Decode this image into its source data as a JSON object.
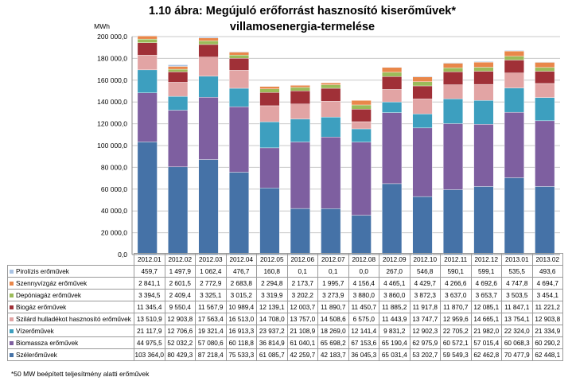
{
  "chart_data": {
    "type": "bar",
    "stacked": true,
    "title": "1.10 ábra: Megújuló erőforrást hasznosító kiserőművek* villamosenergia-termelése",
    "ylabel": "MWh",
    "ylim": [
      0,
      200000
    ],
    "y_ticks": [
      "0,0",
      "20 000,0",
      "40 000,0",
      "60 000,0",
      "80 000,0",
      "100 000,0",
      "120 000,0",
      "140 000,0",
      "160 000,0",
      "180 000,0",
      "200 000,0"
    ],
    "grid": true,
    "categories": [
      "2012.01",
      "2012.02",
      "2012.03",
      "2012.04",
      "2012.05",
      "2012.06",
      "2012.07",
      "2012.08",
      "2012.09",
      "2012.10",
      "2012.11",
      "2012.12",
      "2013.01",
      "2013.02"
    ],
    "series": [
      {
        "name": "Szélerőművek",
        "color": "#4572A7",
        "values": [
          103364.0,
          80429.3,
          87218.4,
          75533.3,
          61085.7,
          42259.7,
          42183.7,
          36045.3,
          65031.4,
          53202.7,
          59549.3,
          62462.8,
          70477.9,
          62448.1
        ],
        "labels": [
          "103 364,0",
          "80 429,3",
          "87 218,4",
          "75 533,3",
          "61 085,7",
          "42 259,7",
          "42 183,7",
          "36 045,3",
          "65 031,4",
          "53 202,7",
          "59 549,3",
          "62 462,8",
          "70 477,9",
          "62 448,1"
        ]
      },
      {
        "name": "Biomassza erőművek",
        "color": "#7E5FA0",
        "values": [
          44975.5,
          52032.2,
          57080.6,
          60118.8,
          36814.9,
          61040.1,
          65698.2,
          67153.6,
          65190.4,
          62975.9,
          60572.1,
          57015.4,
          60068.3,
          60290.2
        ],
        "labels": [
          "44 975,5",
          "52 032,2",
          "57 080,6",
          "60 118,8",
          "36 814,9",
          "61 040,1",
          "65 698,2",
          "67 153,6",
          "65 190,4",
          "62 975,9",
          "60 572,1",
          "57 015,4",
          "60 068,3",
          "60 290,2"
        ]
      },
      {
        "name": "Vízerőművek",
        "color": "#3D9FBF",
        "values": [
          21117.9,
          12706.6,
          19321.4,
          16913.3,
          23937.2,
          21108.9,
          18269.0,
          12141.4,
          9831.2,
          12902.3,
          22705.2,
          21982.0,
          22324.0,
          21334.9
        ],
        "labels": [
          "21 117,9",
          "12 706,6",
          "19 321,4",
          "16 913,3",
          "23 937,2",
          "21 108,9",
          "18 269,0",
          "12 141,4",
          "9 831,2",
          "12 902,3",
          "22 705,2",
          "21 982,0",
          "22 324,0",
          "21 334,9"
        ]
      },
      {
        "name": "Szilárd hulladékot hasznosító erőművek",
        "color": "#E2A4A4",
        "values": [
          13510.9,
          12903.8,
          17563.4,
          16513.0,
          14708.0,
          13757.0,
          14508.6,
          6575.0,
          11443.9,
          13747.7,
          12959.6,
          14665.1,
          13754.1,
          12903.8
        ],
        "labels": [
          "13 510,9",
          "12 903,8",
          "17 563,4",
          "16 513,0",
          "14 708,0",
          "13 757,0",
          "14 508,6",
          "6 575,0",
          "11 443,9",
          "13 747,7",
          "12 959,6",
          "14 665,1",
          "13 754,1",
          "12 903,8"
        ]
      },
      {
        "name": "Biogáz erőművek",
        "color": "#A03037",
        "values": [
          11345.4,
          9550.4,
          11567.9,
          10989.4,
          12139.1,
          12003.7,
          11890.7,
          11450.7,
          11885.2,
          11917.8,
          11870.7,
          12085.1,
          11847.1,
          11221.2
        ],
        "labels": [
          "11 345,4",
          "9 550,4",
          "11 567,9",
          "10 989,4",
          "12 139,1",
          "12 003,7",
          "11 890,7",
          "11 450,7",
          "11 885,2",
          "11 917,8",
          "11 870,7",
          "12 085,1",
          "11 847,1",
          "11 221,2"
        ]
      },
      {
        "name": "Depóniagáz erőművek",
        "color": "#9BBB59",
        "values": [
          3394.5,
          2409.4,
          3325.1,
          3015.2,
          3319.9,
          3202.2,
          3273.9,
          3880.0,
          3860.0,
          3872.3,
          3637.0,
          3653.7,
          3503.5,
          3454.1
        ],
        "labels": [
          "3 394,5",
          "2 409,4",
          "3 325,1",
          "3 015,2",
          "3 319,9",
          "3 202,2",
          "3 273,9",
          "3 880,0",
          "3 860,0",
          "3 872,3",
          "3 637,0",
          "3 653,7",
          "3 503,5",
          "3 454,1"
        ]
      },
      {
        "name": "Szennyvízgáz erőművek",
        "color": "#E9874A",
        "values": [
          2841.1,
          2601.5,
          2772.9,
          2683.8,
          2294.8,
          2173.7,
          1995.7,
          4156.4,
          4465.1,
          4429.7,
          4266.6,
          4692.6,
          4747.8,
          4694.7
        ],
        "labels": [
          "2 841,1",
          "2 601,5",
          "2 772,9",
          "2 683,8",
          "2 294,8",
          "2 173,7",
          "1 995,7",
          "4 156,4",
          "4 465,1",
          "4 429,7",
          "4 266,6",
          "4 692,6",
          "4 747,8",
          "4 694,7"
        ]
      },
      {
        "name": "Pirolízis erőművek",
        "color": "#A9C3E4",
        "values": [
          459.7,
          1497.9,
          1062.4,
          476.7,
          160.8,
          0.1,
          0.1,
          0.0,
          267.0,
          546.8,
          590.1,
          599.1,
          535.5,
          493.6
        ],
        "labels": [
          "459,7",
          "1 497,9",
          "1 062,4",
          "476,7",
          "160,8",
          "0,1",
          "0,1",
          "0,0",
          "267,0",
          "546,8",
          "590,1",
          "599,1",
          "535,5",
          "493,6"
        ]
      }
    ],
    "footnote": "*50 MW beépített teljesítmény alatti erőművek"
  }
}
